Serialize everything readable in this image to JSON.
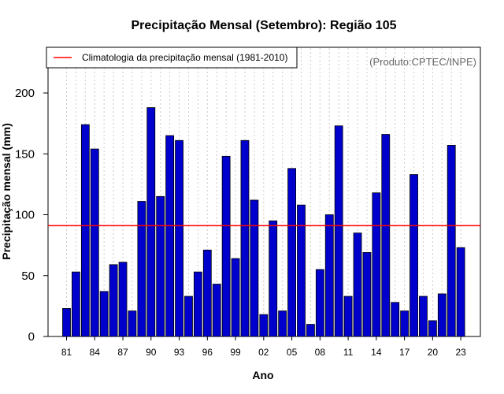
{
  "chart_data": {
    "type": "bar",
    "title": "Precipitação Mensal (Setembro): Região 105",
    "xlabel": "Ano",
    "ylabel": "Precipitação mensal (mm)",
    "ylim": [
      0,
      240
    ],
    "yticks": [
      "0",
      "50",
      "100",
      "150",
      "200"
    ],
    "categories": [
      "81",
      "82",
      "83",
      "84",
      "85",
      "86",
      "87",
      "88",
      "89",
      "90",
      "91",
      "92",
      "93",
      "94",
      "95",
      "96",
      "97",
      "98",
      "99",
      "00",
      "01",
      "02",
      "03",
      "04",
      "05",
      "06",
      "07",
      "08",
      "09",
      "10",
      "11",
      "12",
      "13",
      "14",
      "15",
      "16",
      "17",
      "18",
      "19",
      "20",
      "21",
      "22",
      "23"
    ],
    "values": [
      23,
      53,
      174,
      154,
      37,
      59,
      61,
      21,
      111,
      188,
      115,
      165,
      161,
      33,
      53,
      71,
      43,
      148,
      64,
      161,
      112,
      18,
      95,
      21,
      138,
      108,
      10,
      55,
      100,
      173,
      33,
      85,
      69,
      118,
      166,
      28,
      21,
      133,
      33,
      13,
      35,
      157,
      73
    ],
    "xtick_labels": [
      "81",
      "84",
      "87",
      "90",
      "93",
      "96",
      "99",
      "02",
      "05",
      "08",
      "11",
      "14",
      "17",
      "20",
      "23"
    ],
    "climatology": {
      "label": "Climatologia da precipitação mensal (1981-2010)",
      "value": 91
    },
    "legend_position": "top-left",
    "grid": "vertical dotted",
    "bar_color": "#0000cd",
    "line_color": "#ff0000"
  },
  "credit": "(Produto:CPTEC/INPE)"
}
